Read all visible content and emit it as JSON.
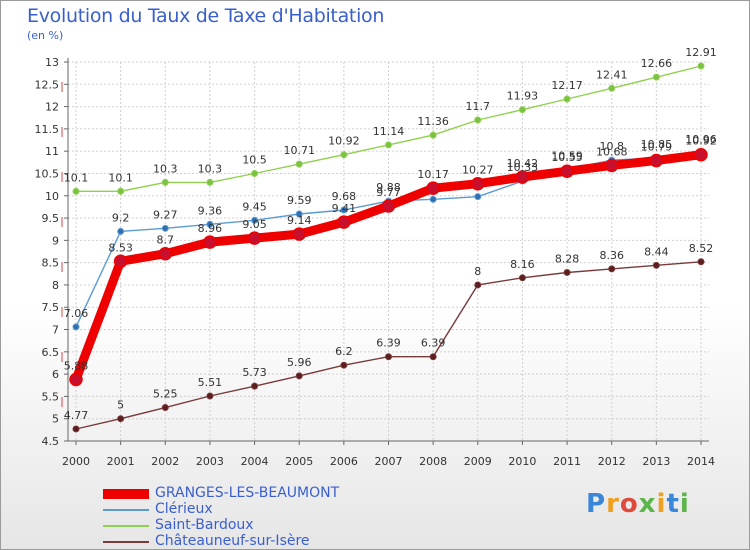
{
  "chart_data": {
    "type": "line",
    "title": "Evolution du Taux de Taxe d'Habitation",
    "subtitle": "(en %)",
    "xlabel": "",
    "ylabel": "",
    "ylim": [
      4.5,
      13
    ],
    "y_ticks": [
      "4.5",
      "5",
      "5.5",
      "6",
      "6.5",
      "7",
      "7.5",
      "8",
      "8.5",
      "9",
      "9.5",
      "10",
      "10.5",
      "11",
      "11.5",
      "12",
      "12.5",
      "13"
    ],
    "x": [
      "2000",
      "2001",
      "2002",
      "2003",
      "2004",
      "2005",
      "2006",
      "2007",
      "2008",
      "2009",
      "2010",
      "2011",
      "2012",
      "2013",
      "2014"
    ],
    "grid": true,
    "legend_position": "bottom-left",
    "series": [
      {
        "name": "GRANGES-LES-BEAUMONT",
        "color": "#ee0000",
        "marker_color": "#c8102e",
        "emphasis": true,
        "values": [
          5.88,
          8.53,
          8.7,
          8.96,
          9.05,
          9.14,
          9.41,
          9.77,
          10.17,
          10.27,
          10.42,
          10.55,
          10.68,
          10.79,
          10.92
        ],
        "labels": [
          "5.88",
          "8.53",
          "8.7",
          "8.96",
          "9.05",
          "9.14",
          "9.41",
          "9.77",
          "10.17",
          "10.27",
          "10.42",
          "10.55",
          "10.68",
          "10.79",
          "10.92"
        ]
      },
      {
        "name": "Clérieux",
        "color": "#5b9bd5",
        "marker_color": "#2f6fb0",
        "emphasis": false,
        "values": [
          7.06,
          9.2,
          9.27,
          9.36,
          9.45,
          9.59,
          9.68,
          9.88,
          9.92,
          9.98,
          10.33,
          10.59,
          10.8,
          10.85,
          10.96
        ],
        "labels": [
          "7.06",
          "9.2",
          "9.27",
          "9.36",
          "9.45",
          "9.59",
          "9.68",
          "9.88",
          "",
          "",
          "10.33",
          "10.59",
          "10.8",
          "10.85",
          "10.96"
        ]
      },
      {
        "name": "Saint-Bardoux",
        "color": "#8fd14f",
        "marker_color": "#7cc242",
        "emphasis": false,
        "values": [
          10.1,
          10.1,
          10.3,
          10.3,
          10.5,
          10.71,
          10.92,
          11.14,
          11.36,
          11.7,
          11.93,
          12.17,
          12.41,
          12.66,
          12.91
        ],
        "labels": [
          "10.1",
          "10.1",
          "10.3",
          "10.3",
          "10.5",
          "10.71",
          "10.92",
          "11.14",
          "11.36",
          "11.7",
          "11.93",
          "12.17",
          "12.41",
          "12.66",
          "12.91"
        ]
      },
      {
        "name": "Châteauneuf-sur-Isère",
        "color": "#7a3a3a",
        "marker_color": "#5a1e1e",
        "emphasis": false,
        "values": [
          4.77,
          5,
          5.25,
          5.51,
          5.73,
          5.96,
          6.2,
          6.39,
          6.39,
          8,
          8.16,
          8.28,
          8.36,
          8.44,
          8.52
        ],
        "labels": [
          "4.77",
          "5",
          "5.25",
          "5.51",
          "5.73",
          "5.96",
          "6.2",
          "6.39",
          "6.39",
          "8",
          "8.16",
          "8.28",
          "8.36",
          "8.44",
          "8.52"
        ]
      }
    ]
  },
  "logo": {
    "letters": [
      "P",
      "r",
      "o",
      "x",
      "i",
      "t",
      "i"
    ],
    "colors": [
      "#3a86d9",
      "#f0a020",
      "#e04a3a",
      "#5bb54a",
      "#f0a020",
      "#3a86d9",
      "#5bb54a"
    ]
  }
}
